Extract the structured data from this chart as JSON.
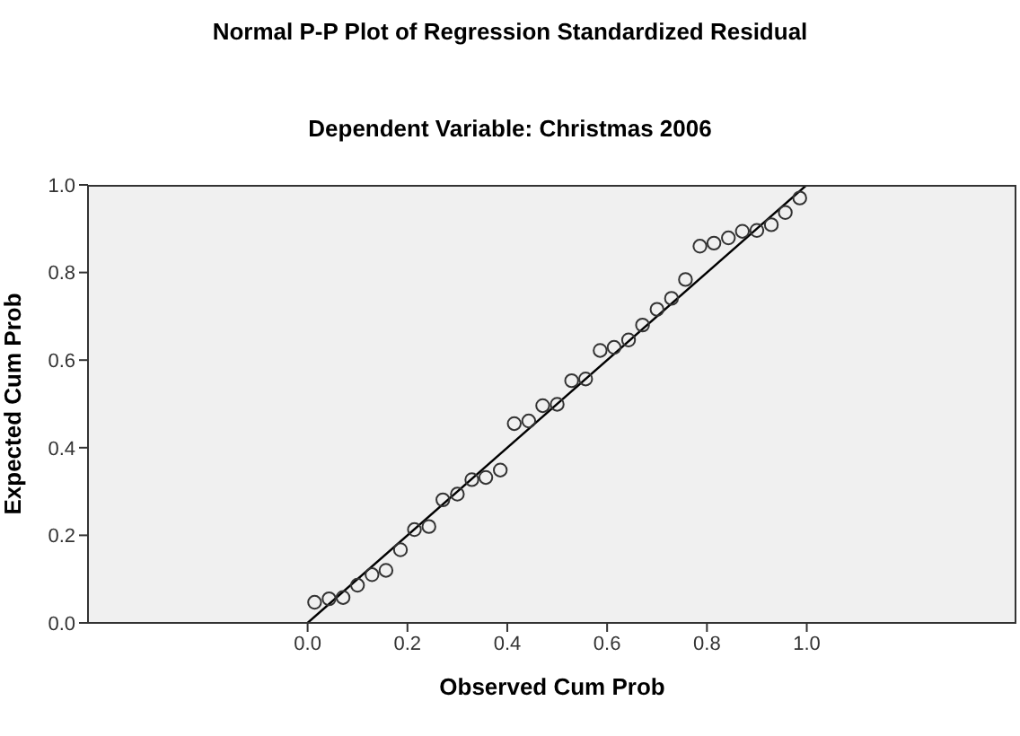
{
  "chart_data": {
    "type": "scatter",
    "title": "Normal P-P Plot of Regression Standardized Residual",
    "subtitle": "Dependent Variable: Christmas 2006",
    "xlabel": "Observed Cum Prob",
    "ylabel": "Expected Cum Prob",
    "xlim": [
      -0.44,
      1.42
    ],
    "ylim": [
      0,
      1
    ],
    "xticks": [
      {
        "value": 0,
        "label": "0.0"
      },
      {
        "value": 0.2,
        "label": "0.2"
      },
      {
        "value": 0.4,
        "label": "0.4"
      },
      {
        "value": 0.6,
        "label": "0.6"
      },
      {
        "value": 0.8,
        "label": "0.8"
      },
      {
        "value": 1,
        "label": "1.0"
      }
    ],
    "yticks": [
      {
        "value": 0,
        "label": "0.0"
      },
      {
        "value": 0.2,
        "label": "0.2"
      },
      {
        "value": 0.4,
        "label": "0.4"
      },
      {
        "value": 0.6,
        "label": "0.6"
      },
      {
        "value": 0.8,
        "label": "0.8"
      },
      {
        "value": 1,
        "label": "1.0"
      }
    ],
    "series": [
      {
        "marker": "circle",
        "color": "#333333",
        "x": [
          0.014,
          0.043,
          0.071,
          0.1,
          0.129,
          0.157,
          0.186,
          0.214,
          0.243,
          0.271,
          0.3,
          0.329,
          0.357,
          0.386,
          0.414,
          0.443,
          0.471,
          0.5,
          0.529,
          0.557,
          0.586,
          0.614,
          0.643,
          0.671,
          0.7,
          0.729,
          0.757,
          0.786,
          0.814,
          0.843,
          0.871,
          0.9,
          0.929,
          0.957,
          0.986
        ],
        "values": [
          0.047,
          0.055,
          0.058,
          0.086,
          0.11,
          0.12,
          0.167,
          0.213,
          0.22,
          0.281,
          0.294,
          0.327,
          0.332,
          0.349,
          0.455,
          0.461,
          0.496,
          0.499,
          0.553,
          0.557,
          0.622,
          0.629,
          0.646,
          0.68,
          0.716,
          0.741,
          0.784,
          0.86,
          0.867,
          0.879,
          0.894,
          0.896,
          0.909,
          0.937,
          0.97
        ]
      },
      {
        "type": "line",
        "marker": "none",
        "color": "#000000",
        "x": [
          0,
          1
        ],
        "values": [
          0,
          1
        ]
      }
    ]
  }
}
